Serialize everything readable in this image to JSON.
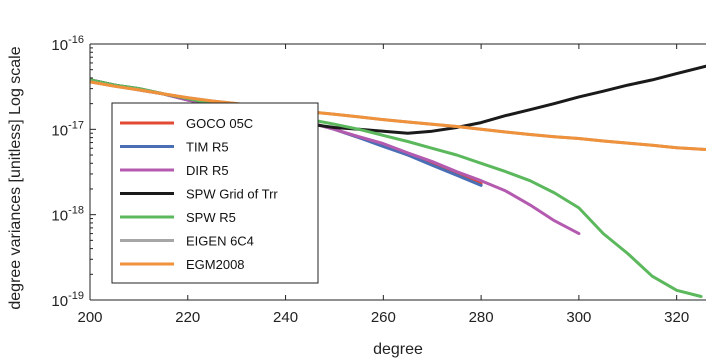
{
  "chart_data": {
    "type": "line",
    "title": "",
    "xlabel": "degree",
    "ylabel": "degree variances [unitless] Log scale",
    "xlim": [
      200,
      326
    ],
    "ylim": [
      1e-19,
      1e-16
    ],
    "y_scale": "log",
    "grid": false,
    "legend_position": "left",
    "x_ticks": [
      200,
      220,
      240,
      260,
      280,
      300,
      320
    ],
    "x_tick_labels": [
      "200",
      "220",
      "240",
      "260",
      "280",
      "300",
      "320"
    ],
    "y_ticks": [
      1e-19,
      1e-18,
      1e-17,
      1e-16
    ],
    "y_tick_labels": [
      {
        "base": "10",
        "exp": "-19"
      },
      {
        "base": "10",
        "exp": "-18"
      },
      {
        "base": "10",
        "exp": "-17"
      },
      {
        "base": "10",
        "exp": "-16"
      }
    ],
    "series": [
      {
        "name": "GOCO 05C",
        "color": "#e24a33",
        "stroke_width": 3,
        "x": [
          200,
          205,
          210,
          215,
          220,
          225,
          230,
          235,
          240,
          245,
          250,
          255,
          260,
          265,
          270,
          275,
          280
        ],
        "y": [
          3.8e-17,
          3.3e-17,
          2.9e-17,
          2.6e-17,
          2.2e-17,
          2e-17,
          1.8e-17,
          1.6e-17,
          1.4e-17,
          1.2e-17,
          1e-17,
          8e-18,
          6.5e-18,
          5e-18,
          4e-18,
          3e-18,
          2.3e-18
        ]
      },
      {
        "name": "TIM R5",
        "color": "#4a6fb5",
        "stroke_width": 3,
        "x": [
          200,
          205,
          210,
          215,
          220,
          225,
          230,
          235,
          240,
          245,
          250,
          255,
          260,
          265,
          270,
          275,
          280
        ],
        "y": [
          3.8e-17,
          3.3e-17,
          2.9e-17,
          2.6e-17,
          2.2e-17,
          2e-17,
          1.8e-17,
          1.6e-17,
          1.4e-17,
          1.2e-17,
          1e-17,
          8e-18,
          6.3e-18,
          5e-18,
          3.8e-18,
          2.9e-18,
          2.2e-18
        ]
      },
      {
        "name": "DIR R5",
        "color": "#b45bb0",
        "stroke_width": 3,
        "x": [
          200,
          205,
          210,
          215,
          220,
          225,
          230,
          235,
          240,
          245,
          250,
          255,
          260,
          265,
          270,
          275,
          280,
          285,
          290,
          295,
          300
        ],
        "y": [
          3.8e-17,
          3.3e-17,
          2.9e-17,
          2.6e-17,
          2.2e-17,
          2e-17,
          1.8e-17,
          1.6e-17,
          1.4e-17,
          1.2e-17,
          1e-17,
          8.2e-18,
          6.8e-18,
          5.3e-18,
          4.2e-18,
          3.2e-18,
          2.5e-18,
          1.9e-18,
          1.3e-18,
          8.5e-19,
          6e-19
        ]
      },
      {
        "name": "SPW Grid of Trr",
        "color": "#1a1a1a",
        "stroke_width": 3,
        "x": [
          200,
          205,
          210,
          215,
          220,
          225,
          230,
          235,
          240,
          245,
          250,
          255,
          260,
          265,
          270,
          275,
          280,
          285,
          290,
          295,
          300,
          305,
          310,
          315,
          320,
          326
        ],
        "y": [
          3.8e-17,
          3.3e-17,
          3e-17,
          2.6e-17,
          2.3e-17,
          2e-17,
          1.7e-17,
          1.5e-17,
          1.3e-17,
          1.15e-17,
          1.05e-17,
          1e-17,
          9.5e-18,
          9e-18,
          9.5e-18,
          1.05e-17,
          1.2e-17,
          1.45e-17,
          1.7e-17,
          2e-17,
          2.4e-17,
          2.8e-17,
          3.3e-17,
          3.8e-17,
          4.5e-17,
          5.5e-17
        ]
      },
      {
        "name": "SPW R5",
        "color": "#5cb85c",
        "stroke_width": 3,
        "x": [
          200,
          205,
          210,
          215,
          220,
          225,
          230,
          235,
          240,
          245,
          250,
          255,
          260,
          265,
          270,
          275,
          280,
          285,
          290,
          295,
          300,
          305,
          310,
          315,
          320,
          325
        ],
        "y": [
          3.8e-17,
          3.3e-17,
          3e-17,
          2.6e-17,
          2.3e-17,
          2e-17,
          1.8e-17,
          1.6e-17,
          1.45e-17,
          1.3e-17,
          1.15e-17,
          1e-17,
          8.5e-18,
          7.2e-18,
          6e-18,
          5e-18,
          4e-18,
          3.2e-18,
          2.5e-18,
          1.8e-18,
          1.2e-18,
          6e-19,
          3.5e-19,
          1.9e-19,
          1.3e-19,
          1.1e-19
        ]
      },
      {
        "name": "EIGEN 6C4",
        "color": "#a6a6a6",
        "stroke_width": 3,
        "x": [
          200,
          205,
          210,
          215,
          220,
          225,
          230,
          235,
          240,
          245,
          250,
          255,
          260,
          265,
          270,
          275,
          280,
          285,
          290,
          295,
          300,
          305,
          310,
          315,
          320,
          326
        ],
        "y": [
          3.6e-17,
          3.2e-17,
          2.9e-17,
          2.6e-17,
          2.35e-17,
          2.15e-17,
          2e-17,
          1.85e-17,
          1.7e-17,
          1.6e-17,
          1.5e-17,
          1.4e-17,
          1.3e-17,
          1.22e-17,
          1.15e-17,
          1.08e-17,
          1e-17,
          9.3e-18,
          8.7e-18,
          8.2e-18,
          7.8e-18,
          7.3e-18,
          6.9e-18,
          6.5e-18,
          6.1e-18,
          5.8e-18
        ]
      },
      {
        "name": "EGM2008",
        "color": "#f0913b",
        "stroke_width": 3,
        "x": [
          200,
          205,
          210,
          215,
          220,
          225,
          230,
          235,
          240,
          245,
          250,
          255,
          260,
          265,
          270,
          275,
          280,
          285,
          290,
          295,
          300,
          305,
          310,
          315,
          320,
          326
        ],
        "y": [
          3.6e-17,
          3.2e-17,
          2.9e-17,
          2.6e-17,
          2.35e-17,
          2.15e-17,
          2e-17,
          1.85e-17,
          1.7e-17,
          1.6e-17,
          1.5e-17,
          1.4e-17,
          1.3e-17,
          1.22e-17,
          1.15e-17,
          1.08e-17,
          1e-17,
          9.3e-18,
          8.7e-18,
          8.2e-18,
          7.8e-18,
          7.3e-18,
          6.9e-18,
          6.5e-18,
          6.1e-18,
          5.8e-18
        ]
      }
    ]
  }
}
